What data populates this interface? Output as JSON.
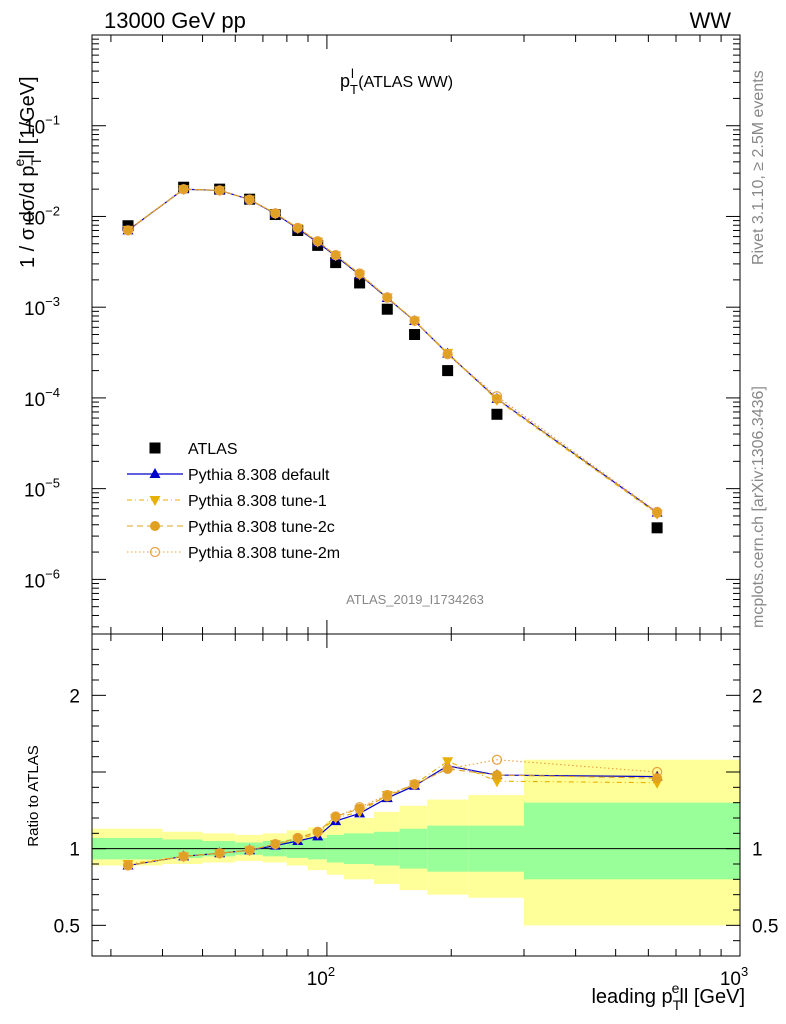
{
  "header": {
    "left": "13000 GeV pp",
    "right": "WW"
  },
  "plot_title": {
    "main": "p",
    "sup": "l",
    "sub": "T",
    "suffix": " (ATLAS WW)"
  },
  "side_text": {
    "rivet": "Rivet 3.1.10, ≥ 2.5M events",
    "mcplots": "mcplots.cern.ch [arXiv:1306.3436]"
  },
  "watermark": "ATLAS_2019_I1734263",
  "upper_ylabel": {
    "pre": "1 / σ  dσ/d p",
    "sub": "T",
    "sup": "e",
    "post": "ll [1/GeV]"
  },
  "lower_ylabel": "Ratio to ATLAS",
  "xlabel": {
    "pre": "leading p",
    "sub": "T",
    "sup": "e",
    "post": "ll [GeV]"
  },
  "upper_yticks": [
    {
      "v": 0.1,
      "m": "10",
      "e": "−1"
    },
    {
      "v": 0.01,
      "m": "10",
      "e": "−2"
    },
    {
      "v": 0.001,
      "m": "10",
      "e": "−3"
    },
    {
      "v": 0.0001,
      "m": "10",
      "e": "−4"
    },
    {
      "v": 1e-05,
      "m": "10",
      "e": "−5"
    },
    {
      "v": 1e-06,
      "m": "10",
      "e": "−6"
    }
  ],
  "lower_yticks": [
    "2",
    "1",
    "0.5"
  ],
  "xticks": [
    {
      "v": 100,
      "m": "10",
      "e": "2"
    },
    {
      "v": 1000,
      "m": "10",
      "e": "3"
    }
  ],
  "legend": [
    {
      "name": "ATLAS",
      "style": "data"
    },
    {
      "name": "Pythia 8.308 default",
      "style": "default"
    },
    {
      "name": "Pythia 8.308 tune-1",
      "style": "tune1"
    },
    {
      "name": "Pythia 8.308 tune-2c",
      "style": "tune2c"
    },
    {
      "name": "Pythia 8.308 tune-2m",
      "style": "tune2m"
    }
  ],
  "colors": {
    "data": "#000000",
    "default": "#0000cc",
    "tune1": "#e8b000",
    "tune2c": "#e0a020",
    "tune2m": "#e8a040",
    "band_inner": "#99ff99",
    "band_outer": "#ffff99"
  },
  "chart_data": {
    "type": "scatter",
    "x_scale": "log",
    "xlim": [
      27,
      1000
    ],
    "upper_ylim": [
      2.5e-07,
      1.0
    ],
    "upper_yscale": "log",
    "ratio_ylim": [
      0.3,
      2.4
    ],
    "bins": [
      {
        "lo": 27,
        "hi": 40,
        "x": 33
      },
      {
        "lo": 40,
        "hi": 50,
        "x": 45
      },
      {
        "lo": 50,
        "hi": 60,
        "x": 55
      },
      {
        "lo": 60,
        "hi": 70,
        "x": 65
      },
      {
        "lo": 70,
        "hi": 80,
        "x": 75
      },
      {
        "lo": 80,
        "hi": 90,
        "x": 85
      },
      {
        "lo": 90,
        "hi": 100,
        "x": 95
      },
      {
        "lo": 100,
        "hi": 110,
        "x": 105
      },
      {
        "lo": 110,
        "hi": 130,
        "x": 120
      },
      {
        "lo": 130,
        "hi": 150,
        "x": 140
      },
      {
        "lo": 150,
        "hi": 175,
        "x": 163
      },
      {
        "lo": 175,
        "hi": 220,
        "x": 196
      },
      {
        "lo": 220,
        "hi": 300,
        "x": 258
      },
      {
        "lo": 300,
        "hi": 1000,
        "x": 630
      }
    ],
    "atlas": [
      0.0079,
      0.021,
      0.02,
      0.0155,
      0.0105,
      0.007,
      0.0048,
      0.0031,
      0.00185,
      0.00095,
      0.0005,
      0.0002,
      6.6e-05,
      3.7e-06
    ],
    "band_inner": [
      [
        0.93,
        1.07
      ],
      [
        0.94,
        1.06
      ],
      [
        0.95,
        1.05
      ],
      [
        0.96,
        1.04
      ],
      [
        0.95,
        1.05
      ],
      [
        0.94,
        1.06
      ],
      [
        0.93,
        1.07
      ],
      [
        0.91,
        1.09
      ],
      [
        0.9,
        1.1
      ],
      [
        0.89,
        1.11
      ],
      [
        0.87,
        1.13
      ],
      [
        0.85,
        1.15
      ],
      [
        0.85,
        1.15
      ],
      [
        0.8,
        1.3
      ]
    ],
    "band_outer": [
      [
        0.89,
        1.13
      ],
      [
        0.9,
        1.11
      ],
      [
        0.91,
        1.1
      ],
      [
        0.92,
        1.09
      ],
      [
        0.91,
        1.1
      ],
      [
        0.89,
        1.12
      ],
      [
        0.86,
        1.14
      ],
      [
        0.83,
        1.18
      ],
      [
        0.8,
        1.2
      ],
      [
        0.77,
        1.24
      ],
      [
        0.73,
        1.28
      ],
      [
        0.7,
        1.32
      ],
      [
        0.68,
        1.35
      ],
      [
        0.5,
        1.58
      ]
    ],
    "series": [
      {
        "name": "Pythia 8.308 default",
        "style": "default",
        "ratio": [
          0.89,
          0.95,
          0.97,
          0.99,
          1.02,
          1.05,
          1.08,
          1.18,
          1.23,
          1.33,
          1.41,
          1.54,
          1.48,
          1.47
        ]
      },
      {
        "name": "Pythia 8.308 tune-1",
        "style": "tune1",
        "ratio": [
          0.9,
          0.95,
          0.97,
          0.99,
          1.03,
          1.06,
          1.1,
          1.2,
          1.24,
          1.35,
          1.42,
          1.57,
          1.44,
          1.43
        ]
      },
      {
        "name": "Pythia 8.308 tune-2c",
        "style": "tune2c",
        "ratio": [
          0.89,
          0.95,
          0.97,
          0.99,
          1.03,
          1.07,
          1.11,
          1.21,
          1.26,
          1.34,
          1.42,
          1.52,
          1.48,
          1.46
        ]
      },
      {
        "name": "Pythia 8.308 tune-2m",
        "style": "tune2m",
        "ratio": [
          0.89,
          0.95,
          0.97,
          0.99,
          1.03,
          1.07,
          1.11,
          1.21,
          1.27,
          1.35,
          1.42,
          1.52,
          1.58,
          1.5
        ]
      }
    ]
  }
}
